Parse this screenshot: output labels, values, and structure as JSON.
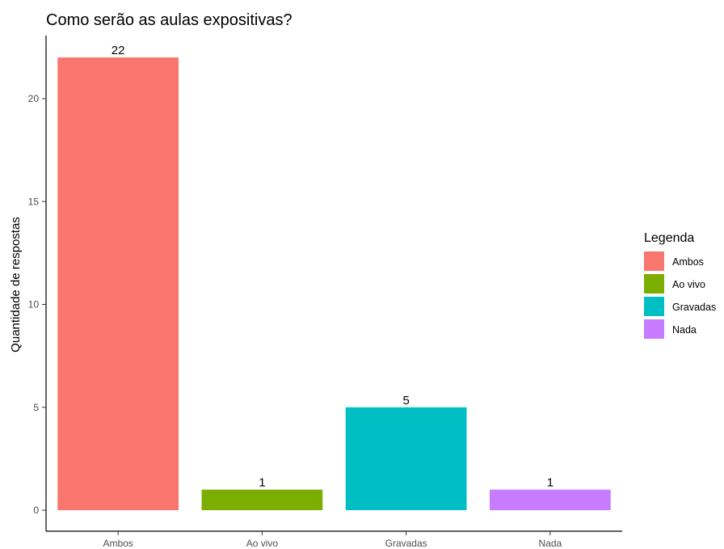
{
  "chart_data": {
    "type": "bar",
    "title": "Como serão as aulas expositivas?",
    "xlabel": "",
    "ylabel": "Quantidade de respostas",
    "categories": [
      "Ambos",
      "Ao vivo",
      "Gravadas",
      "Nada"
    ],
    "values": [
      22,
      1,
      5,
      1
    ],
    "colors": [
      "#F8766D",
      "#7CAE00",
      "#00BFC4",
      "#C77CFF"
    ],
    "ylim": [
      0,
      23
    ],
    "yticks": [
      0,
      5,
      10,
      15,
      20
    ],
    "grid": false,
    "legend": {
      "title": "Legenda",
      "placement": "right",
      "entries": [
        "Ambos",
        "Ao vivo",
        "Gravadas",
        "Nada"
      ]
    }
  }
}
